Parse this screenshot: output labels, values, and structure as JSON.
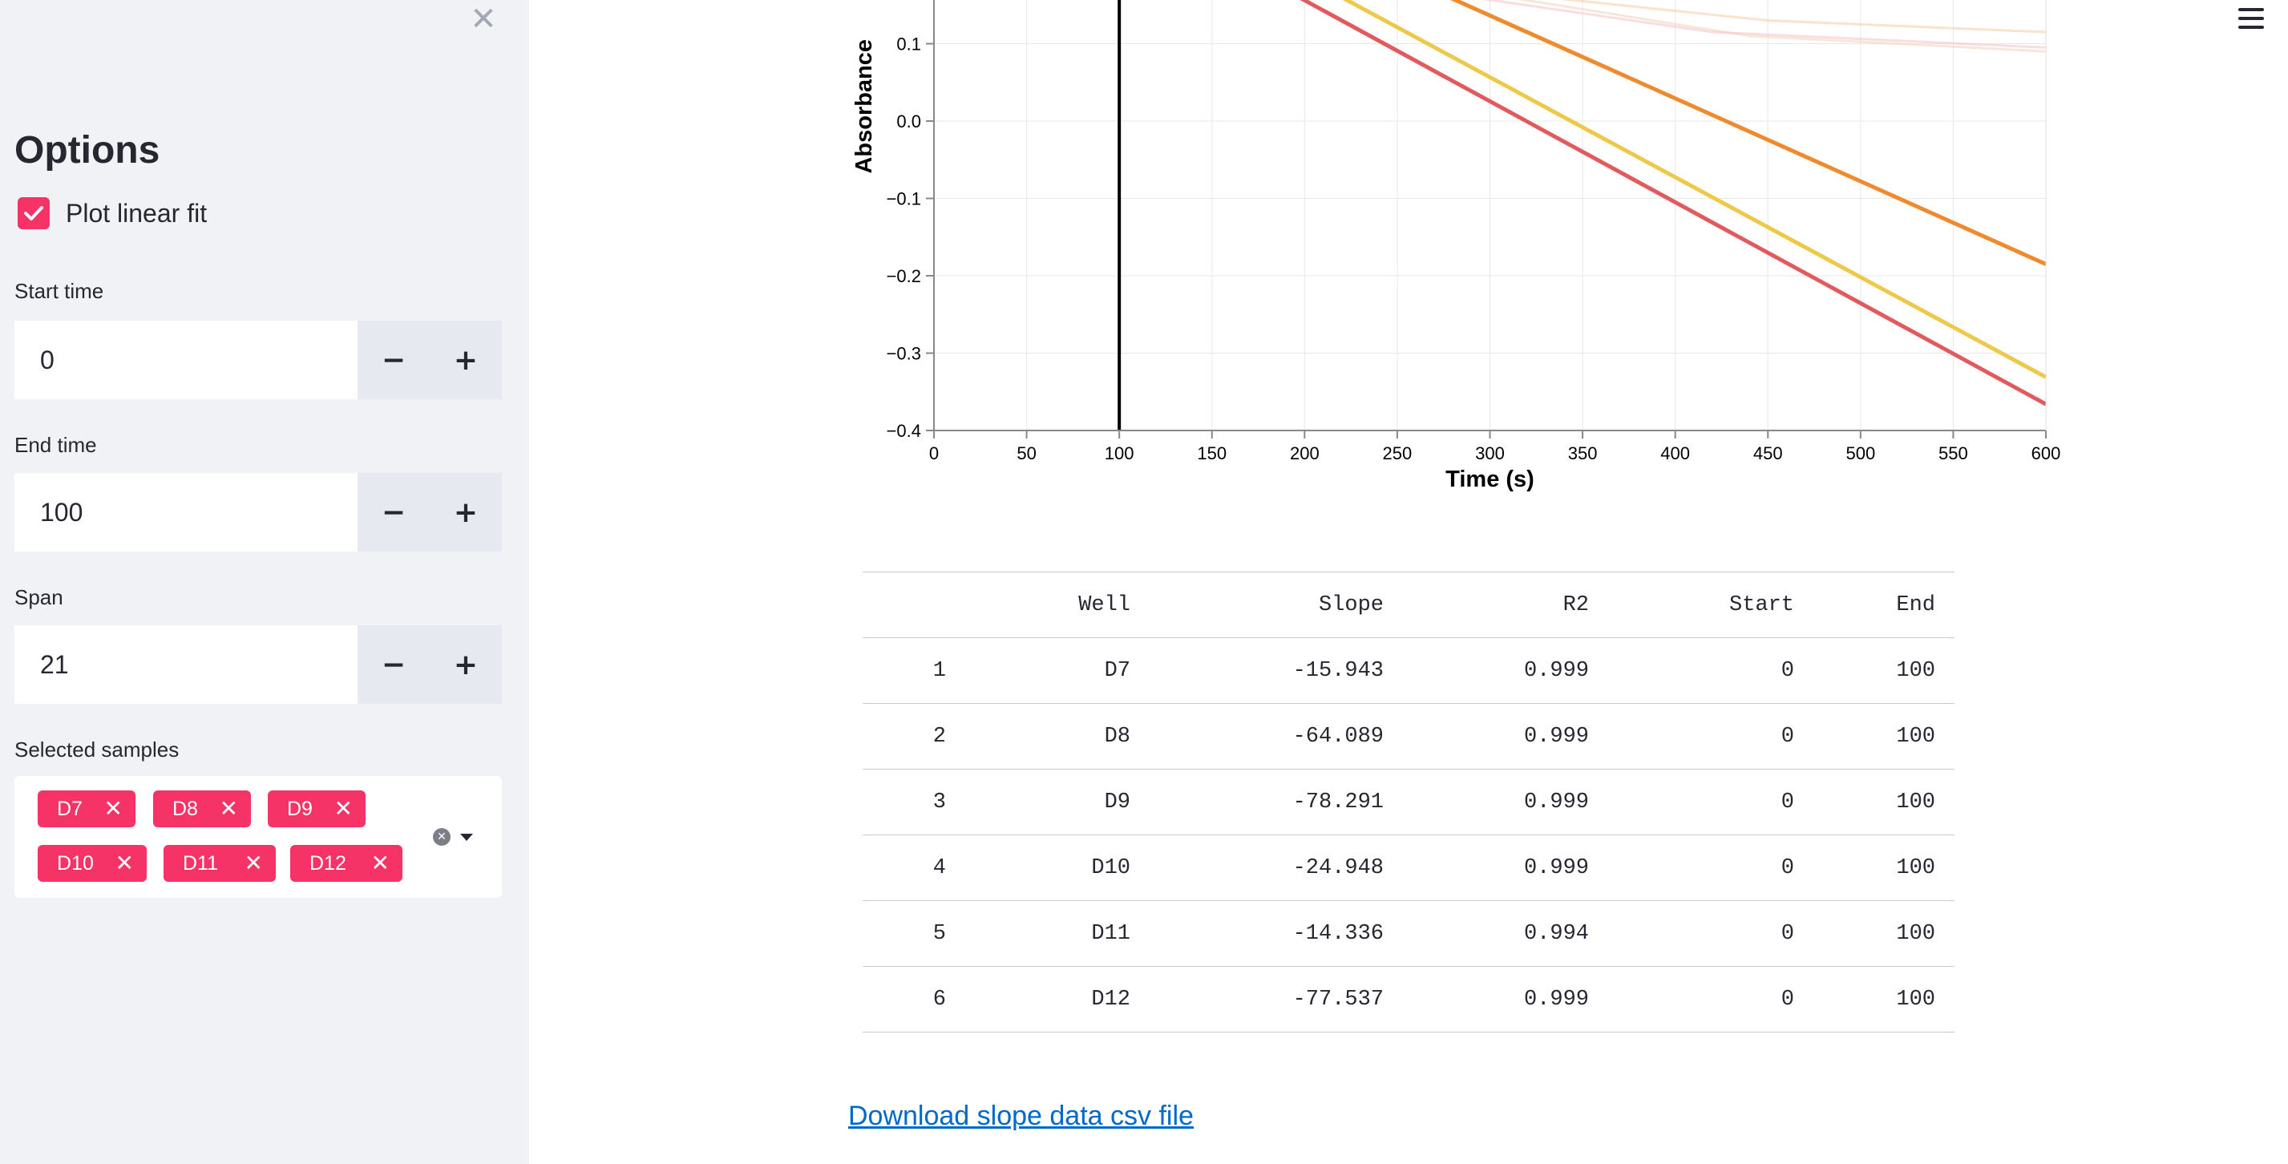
{
  "sidebar": {
    "title": "Options",
    "plot_linear_fit": {
      "label": "Plot linear fit",
      "checked": true
    },
    "start_time": {
      "label": "Start time",
      "value": "0"
    },
    "end_time": {
      "label": "End time",
      "value": "100"
    },
    "span": {
      "label": "Span",
      "value": "21"
    },
    "selected_samples": {
      "label": "Selected samples",
      "tags": [
        "D7",
        "D8",
        "D9",
        "D10",
        "D11",
        "D12"
      ]
    },
    "minus_symbol": "−",
    "plus_symbol": "+",
    "close_symbol": "✕"
  },
  "chart_data": {
    "type": "line",
    "xlabel": "Time (s)",
    "ylabel": "Absorbance",
    "xlim": [
      0,
      600
    ],
    "ylim": [
      -0.4,
      0.16
    ],
    "x_ticks": [
      "0",
      "50",
      "100",
      "150",
      "200",
      "250",
      "300",
      "350",
      "400",
      "450",
      "500",
      "550",
      "600"
    ],
    "y_ticks": [
      "0.1",
      "0.0",
      "−0.1",
      "−0.2",
      "−0.3",
      "−0.4"
    ],
    "grid": true,
    "vertical_line_x": 100,
    "series": [
      {
        "color": "#e05a5e",
        "points": [
          [
            197,
            0.16
          ],
          [
            600,
            -0.366
          ]
        ]
      },
      {
        "color": "#ecc94b",
        "points": [
          [
            220,
            0.16
          ],
          [
            600,
            -0.331
          ]
        ]
      },
      {
        "color": "#ef8a2e",
        "points": [
          [
            278,
            0.16
          ],
          [
            600,
            -0.185
          ]
        ]
      },
      {
        "color": "#f7cfa8",
        "opacity": 0.6,
        "points": [
          [
            330,
            0.16
          ],
          [
            450,
            0.13
          ],
          [
            600,
            0.115
          ]
        ]
      },
      {
        "color": "#f5c1c2",
        "opacity": 0.55,
        "points": [
          [
            290,
            0.16
          ],
          [
            420,
            0.115
          ],
          [
            600,
            0.095
          ]
        ]
      },
      {
        "color": "#f3cdb8",
        "opacity": 0.5,
        "points": [
          [
            310,
            0.16
          ],
          [
            440,
            0.11
          ],
          [
            600,
            0.09
          ]
        ]
      }
    ]
  },
  "table": {
    "columns": [
      "",
      "Well",
      "Slope",
      "R2",
      "Start",
      "End"
    ],
    "rows": [
      [
        "1",
        "D7",
        "-15.943",
        "0.999",
        "0",
        "100"
      ],
      [
        "2",
        "D8",
        "-64.089",
        "0.999",
        "0",
        "100"
      ],
      [
        "3",
        "D9",
        "-78.291",
        "0.999",
        "0",
        "100"
      ],
      [
        "4",
        "D10",
        "-24.948",
        "0.999",
        "0",
        "100"
      ],
      [
        "5",
        "D11",
        "-14.336",
        "0.994",
        "0",
        "100"
      ],
      [
        "6",
        "D12",
        "-77.537",
        "0.999",
        "0",
        "100"
      ]
    ]
  },
  "download_link": "Download slope data csv file",
  "colors": {
    "accent": "#f63366",
    "sidebar_bg": "#f0f2f6",
    "link": "#0068c9"
  },
  "icons": {
    "close": "close-icon",
    "menu": "hamburger-menu-icon",
    "check": "check-icon"
  }
}
